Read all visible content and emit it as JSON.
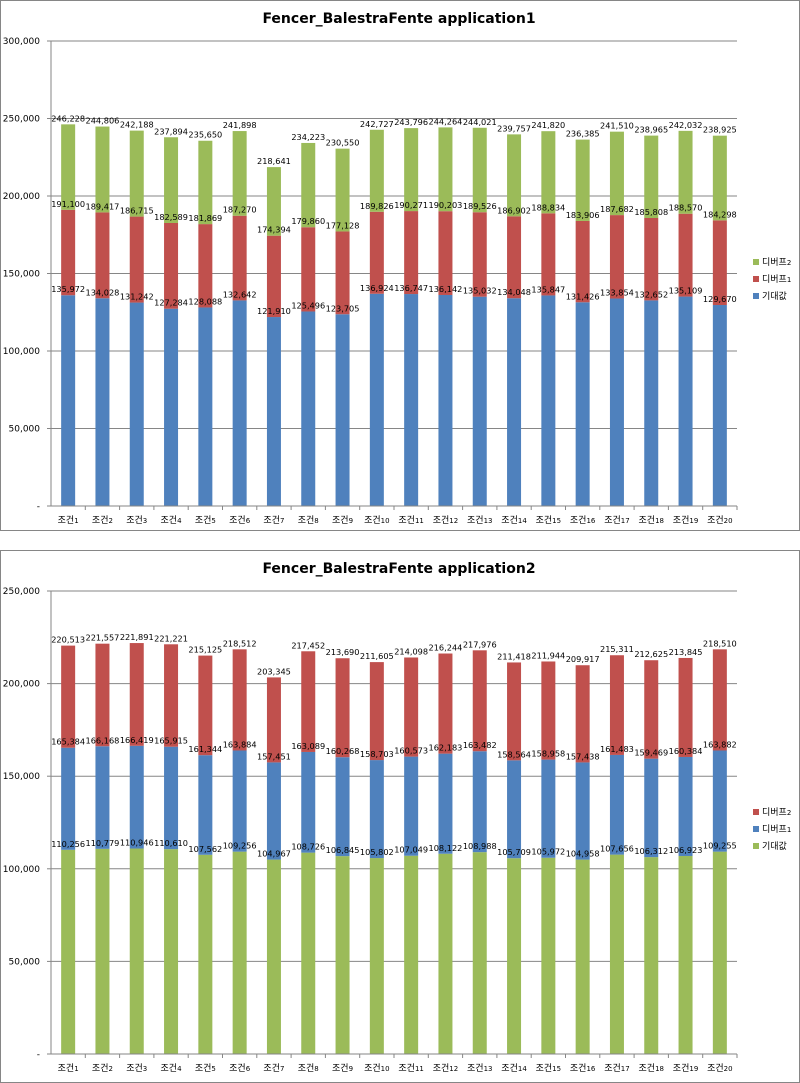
{
  "colors": {
    "blue": "#4f81bd",
    "red": "#c0504d",
    "green": "#9bbb59",
    "grid": "#868686",
    "axis": "#868686"
  },
  "chart_data": [
    {
      "type": "bar",
      "stacked": true,
      "title": "Fencer_BalestraFente application1",
      "categories": [
        "조건1",
        "조건2",
        "조건3",
        "조건4",
        "조건5",
        "조건6",
        "조건7",
        "조건8",
        "조건9",
        "조건10",
        "조건11",
        "조건12",
        "조건13",
        "조건14",
        "조건15",
        "조건16",
        "조건17",
        "조건18",
        "조건19",
        "조건20"
      ],
      "category_base": "조건",
      "y_ticks": [
        "-",
        "50,000",
        "100,000",
        "150,000",
        "200,000",
        "250,000",
        "300,000"
      ],
      "ylim": [
        0,
        300000
      ],
      "grid": true,
      "legend_position": "right",
      "series": [
        {
          "name": "기대값",
          "color": "#4f81bd",
          "cumulative": [
            135972,
            134028,
            131242,
            127284,
            128088,
            132642,
            121910,
            125496,
            123705,
            136924,
            136747,
            136142,
            135032,
            134048,
            135847,
            131426,
            133854,
            132652,
            135109,
            129670
          ],
          "labels": [
            "135,972",
            "134,028",
            "131,242",
            "127,284",
            "128,088",
            "132,642",
            "121,910",
            "125,496",
            "123,705",
            "136,924",
            "136,747",
            "136,142",
            "135,032",
            "134,048",
            "135,847",
            "131,426",
            "133,854",
            "132,652",
            "135,109",
            "129,670"
          ]
        },
        {
          "name": "디버프1",
          "name_base": "디버프",
          "name_sub": "1",
          "color": "#c0504d",
          "cumulative": [
            191100,
            189417,
            186715,
            182589,
            181869,
            187270,
            174394,
            179860,
            177128,
            189826,
            190271,
            190203,
            189526,
            186902,
            188834,
            183906,
            187682,
            185808,
            188570,
            184298
          ],
          "labels": [
            "191,100",
            "189,417",
            "186,715",
            "182,589",
            "181,869",
            "187,270",
            "174,394",
            "179,860",
            "177,128",
            "189,826",
            "190,271",
            "190,203",
            "189,526",
            "186,902",
            "188,834",
            "183,906",
            "187,682",
            "185,808",
            "188,570",
            "184,298"
          ]
        },
        {
          "name": "디버프2",
          "name_base": "디버프",
          "name_sub": "2",
          "color": "#9bbb59",
          "cumulative": [
            246228,
            244806,
            242188,
            237894,
            235650,
            241898,
            218641,
            234223,
            230550,
            242727,
            243796,
            244264,
            244021,
            239757,
            241820,
            236385,
            241510,
            238965,
            242032,
            238925
          ],
          "labels": [
            "246,228",
            "244,806",
            "242,188",
            "237,894",
            "235,650",
            "241,898",
            "218,641",
            "234,223",
            "230,550",
            "242,727",
            "243,796",
            "244,264",
            "244,021",
            "239,757",
            "241,820",
            "236,385",
            "241,510",
            "238,965",
            "242,032",
            "238,925"
          ]
        }
      ],
      "legend": [
        {
          "base": "디버프",
          "sub": "2",
          "color": "#9bbb59"
        },
        {
          "base": "디버프",
          "sub": "1",
          "color": "#c0504d"
        },
        {
          "base": "기대값",
          "sub": "",
          "color": "#4f81bd"
        }
      ]
    },
    {
      "type": "bar",
      "stacked": true,
      "title": "Fencer_BalestraFente application2",
      "categories": [
        "조건1",
        "조건2",
        "조건3",
        "조건4",
        "조건5",
        "조건6",
        "조건7",
        "조건8",
        "조건9",
        "조건10",
        "조건11",
        "조건12",
        "조건13",
        "조건14",
        "조건15",
        "조건16",
        "조건17",
        "조건18",
        "조건19",
        "조건20"
      ],
      "category_base": "조건",
      "y_ticks": [
        "-",
        "50,000",
        "100,000",
        "150,000",
        "200,000",
        "250,000"
      ],
      "ylim": [
        0,
        250000
      ],
      "grid": true,
      "legend_position": "right",
      "series": [
        {
          "name": "기대값",
          "color": "#9bbb59",
          "cumulative": [
            110256,
            110779,
            110946,
            110610,
            107562,
            109256,
            104967,
            108726,
            106845,
            105802,
            107049,
            108122,
            108988,
            105709,
            105972,
            104958,
            107656,
            106312,
            106923,
            109255
          ],
          "labels": [
            "110,256",
            "110,779",
            "110,946",
            "110,610",
            "107,562",
            "109,256",
            "104,967",
            "108,726",
            "106,845",
            "105,802",
            "107,049",
            "108,122",
            "108,988",
            "105,709",
            "105,972",
            "104,958",
            "107,656",
            "106,312",
            "106,923",
            "109,255"
          ]
        },
        {
          "name": "디버프1",
          "name_base": "디버프",
          "name_sub": "1",
          "color": "#4f81bd",
          "cumulative": [
            165384,
            166168,
            166419,
            165915,
            161344,
            163884,
            157451,
            163089,
            160268,
            158703,
            160573,
            162183,
            163482,
            158564,
            158958,
            157438,
            161483,
            159469,
            160384,
            163882
          ],
          "labels": [
            "165,384",
            "166,168",
            "166,419",
            "165,915",
            "161,344",
            "163,884",
            "157,451",
            "163,089",
            "160,268",
            "158,703",
            "160,573",
            "162,183",
            "163,482",
            "158,564",
            "158,958",
            "157,438",
            "161,483",
            "159,469",
            "160,384",
            "163,882"
          ]
        },
        {
          "name": "디버프2",
          "name_base": "디버프",
          "name_sub": "2",
          "color": "#c0504d",
          "cumulative": [
            220513,
            221557,
            221891,
            221221,
            215125,
            218512,
            203345,
            217452,
            213690,
            211605,
            214098,
            216244,
            217976,
            211418,
            211944,
            209917,
            215311,
            212625,
            213845,
            218510
          ],
          "labels": [
            "220,513",
            "221,557",
            "221,891",
            "221,221",
            "215,125",
            "218,512",
            "203,345",
            "217,452",
            "213,690",
            "211,605",
            "214,098",
            "216,244",
            "217,976",
            "211,418",
            "211,944",
            "209,917",
            "215,311",
            "212,625",
            "213,845",
            "218,510"
          ]
        }
      ],
      "legend": [
        {
          "base": "디버프",
          "sub": "2",
          "color": "#c0504d"
        },
        {
          "base": "디버프",
          "sub": "1",
          "color": "#4f81bd"
        },
        {
          "base": "기대값",
          "sub": "",
          "color": "#9bbb59"
        }
      ]
    }
  ]
}
